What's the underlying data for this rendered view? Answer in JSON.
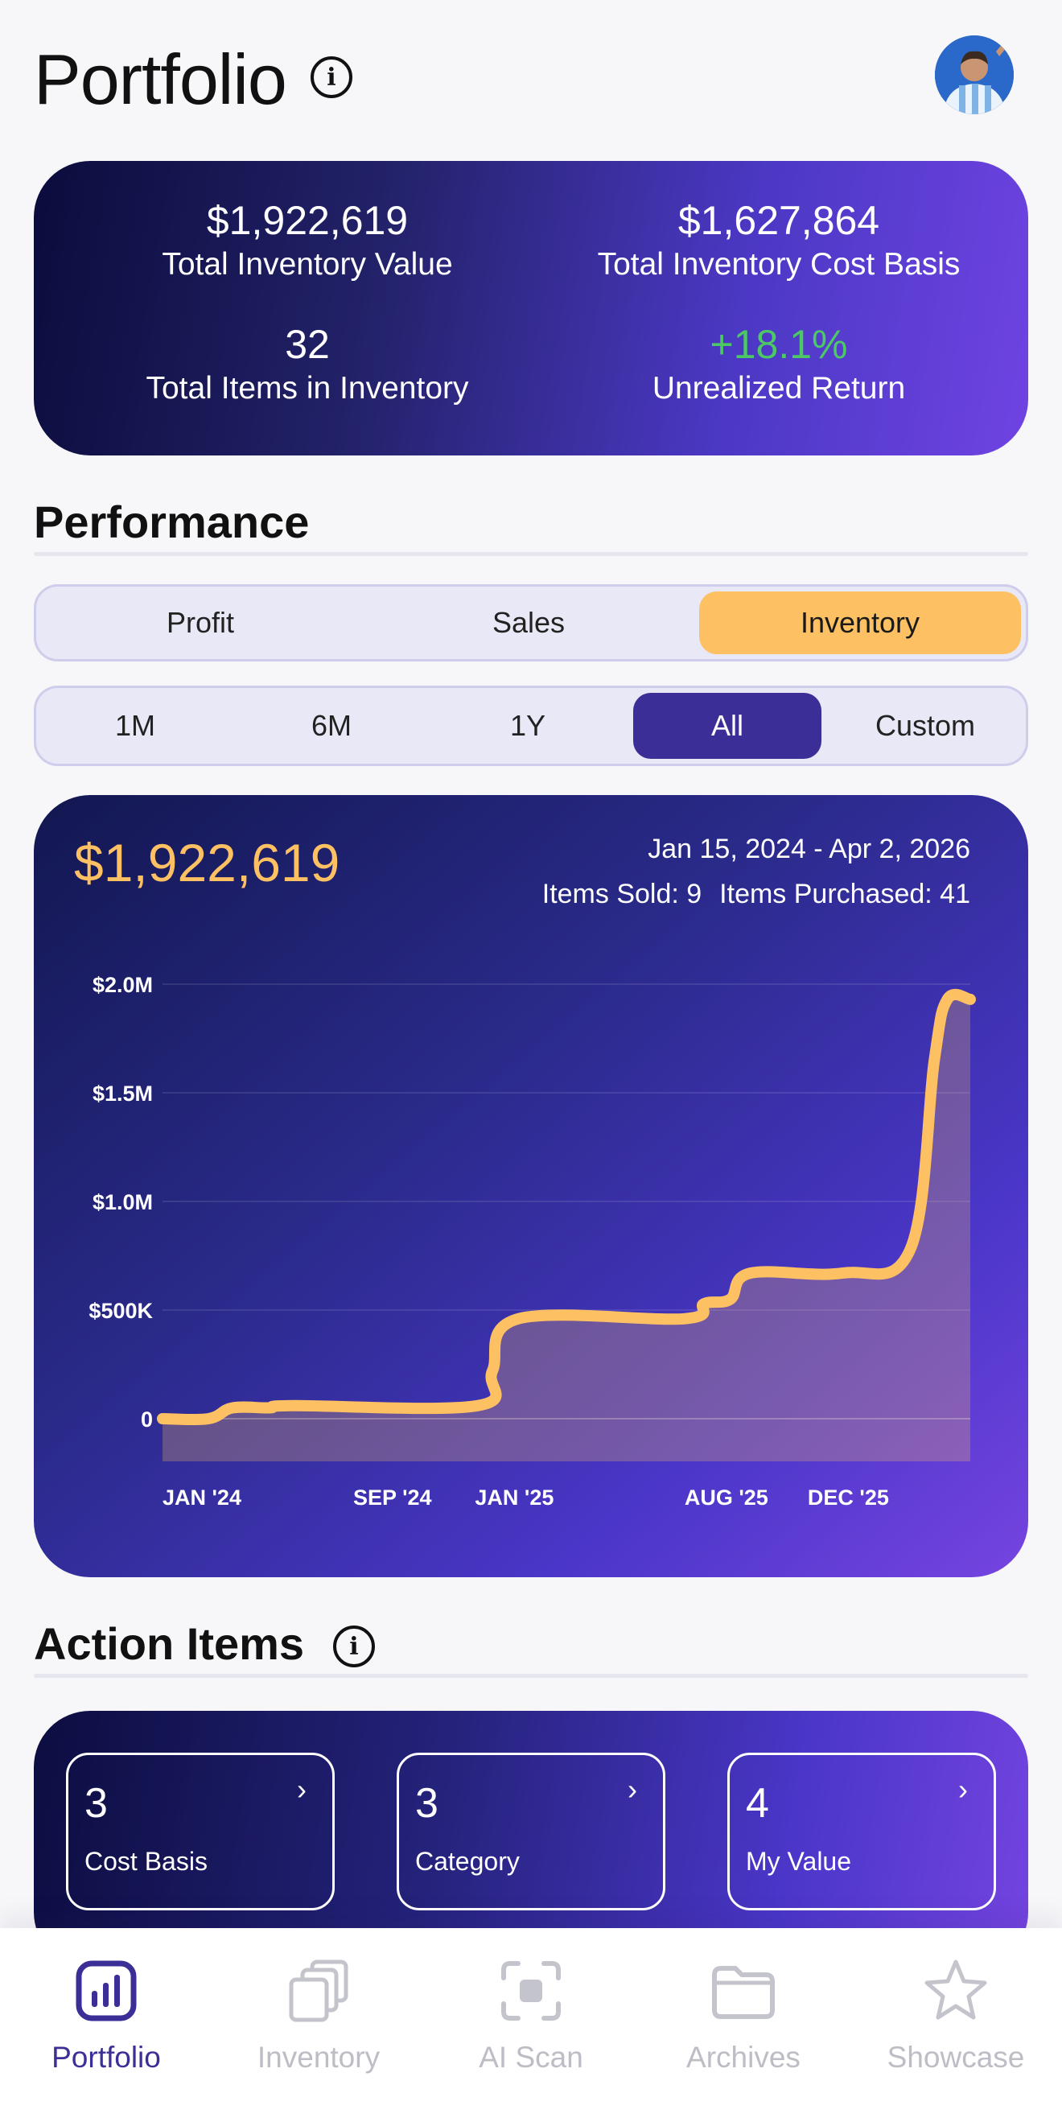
{
  "header": {
    "title": "Portfolio"
  },
  "summary": {
    "total_value": "$1,922,619",
    "total_value_label": "Total Inventory Value",
    "cost_basis": "$1,627,864",
    "cost_basis_label": "Total Inventory Cost Basis",
    "items_count": "32",
    "items_count_label": "Total Items in Inventory",
    "unrealized_return": "+18.1%",
    "unrealized_return_label": "Unrealized Return"
  },
  "performance": {
    "title": "Performance",
    "metric_tabs": [
      "Profit",
      "Sales",
      "Inventory"
    ],
    "metric_selected": "Inventory",
    "range_tabs": [
      "1M",
      "6M",
      "1Y",
      "All",
      "Custom"
    ],
    "range_selected": "All"
  },
  "chart_card": {
    "value": "$1,922,619",
    "date_range": "Jan 15, 2024 - Apr 2, 2026",
    "items_sold": "Items Sold: 9",
    "items_purchased": "Items Purchased: 41"
  },
  "chart_data": {
    "type": "area",
    "y_tick_labels": [
      "$2.0M",
      "$1.5M",
      "$1.0M",
      "$500K",
      "0"
    ],
    "y_ticks": [
      2000000,
      1500000,
      1000000,
      500000,
      0
    ],
    "ylim": [
      0,
      2000000
    ],
    "x_tick_labels": [
      "JAN '24",
      "SEP '24",
      "JAN '25",
      "AUG '25",
      "DEC '25"
    ],
    "x_tick_dates": [
      "2024-01-15",
      "2024-09-01",
      "2025-01-01",
      "2025-08-01",
      "2025-12-01"
    ],
    "xlim": [
      "2024-01-15",
      "2026-04-02"
    ],
    "grid": true,
    "series": [
      {
        "color": "#fdc163",
        "points": [
          [
            "2024-01-15",
            0
          ],
          [
            "2024-03-01",
            0
          ],
          [
            "2024-03-25",
            50000
          ],
          [
            "2024-05-01",
            50000
          ],
          [
            "2024-05-25",
            60000
          ],
          [
            "2024-11-25",
            60000
          ],
          [
            "2024-12-10",
            220000
          ],
          [
            "2025-01-05",
            460000
          ],
          [
            "2025-06-20",
            460000
          ],
          [
            "2025-07-10",
            530000
          ],
          [
            "2025-08-05",
            550000
          ],
          [
            "2025-08-25",
            670000
          ],
          [
            "2025-11-25",
            670000
          ],
          [
            "2026-02-01",
            780000
          ],
          [
            "2026-02-25",
            1650000
          ],
          [
            "2026-03-10",
            1930000
          ],
          [
            "2026-04-02",
            1930000
          ]
        ]
      }
    ]
  },
  "action_items": {
    "title": "Action Items",
    "tiles": [
      {
        "count": "3",
        "label": "Cost Basis"
      },
      {
        "count": "3",
        "label": "Category"
      },
      {
        "count": "4",
        "label": "My Value"
      }
    ]
  },
  "tabbar": {
    "items": [
      {
        "label": "Portfolio",
        "icon": "bar-chart-icon",
        "active": true
      },
      {
        "label": "Inventory",
        "icon": "stacked-cards-icon",
        "active": false
      },
      {
        "label": "AI Scan",
        "icon": "scan-icon",
        "active": false
      },
      {
        "label": "Archives",
        "icon": "folder-icon",
        "active": false
      },
      {
        "label": "Showcase",
        "icon": "star-icon",
        "active": false
      }
    ]
  }
}
